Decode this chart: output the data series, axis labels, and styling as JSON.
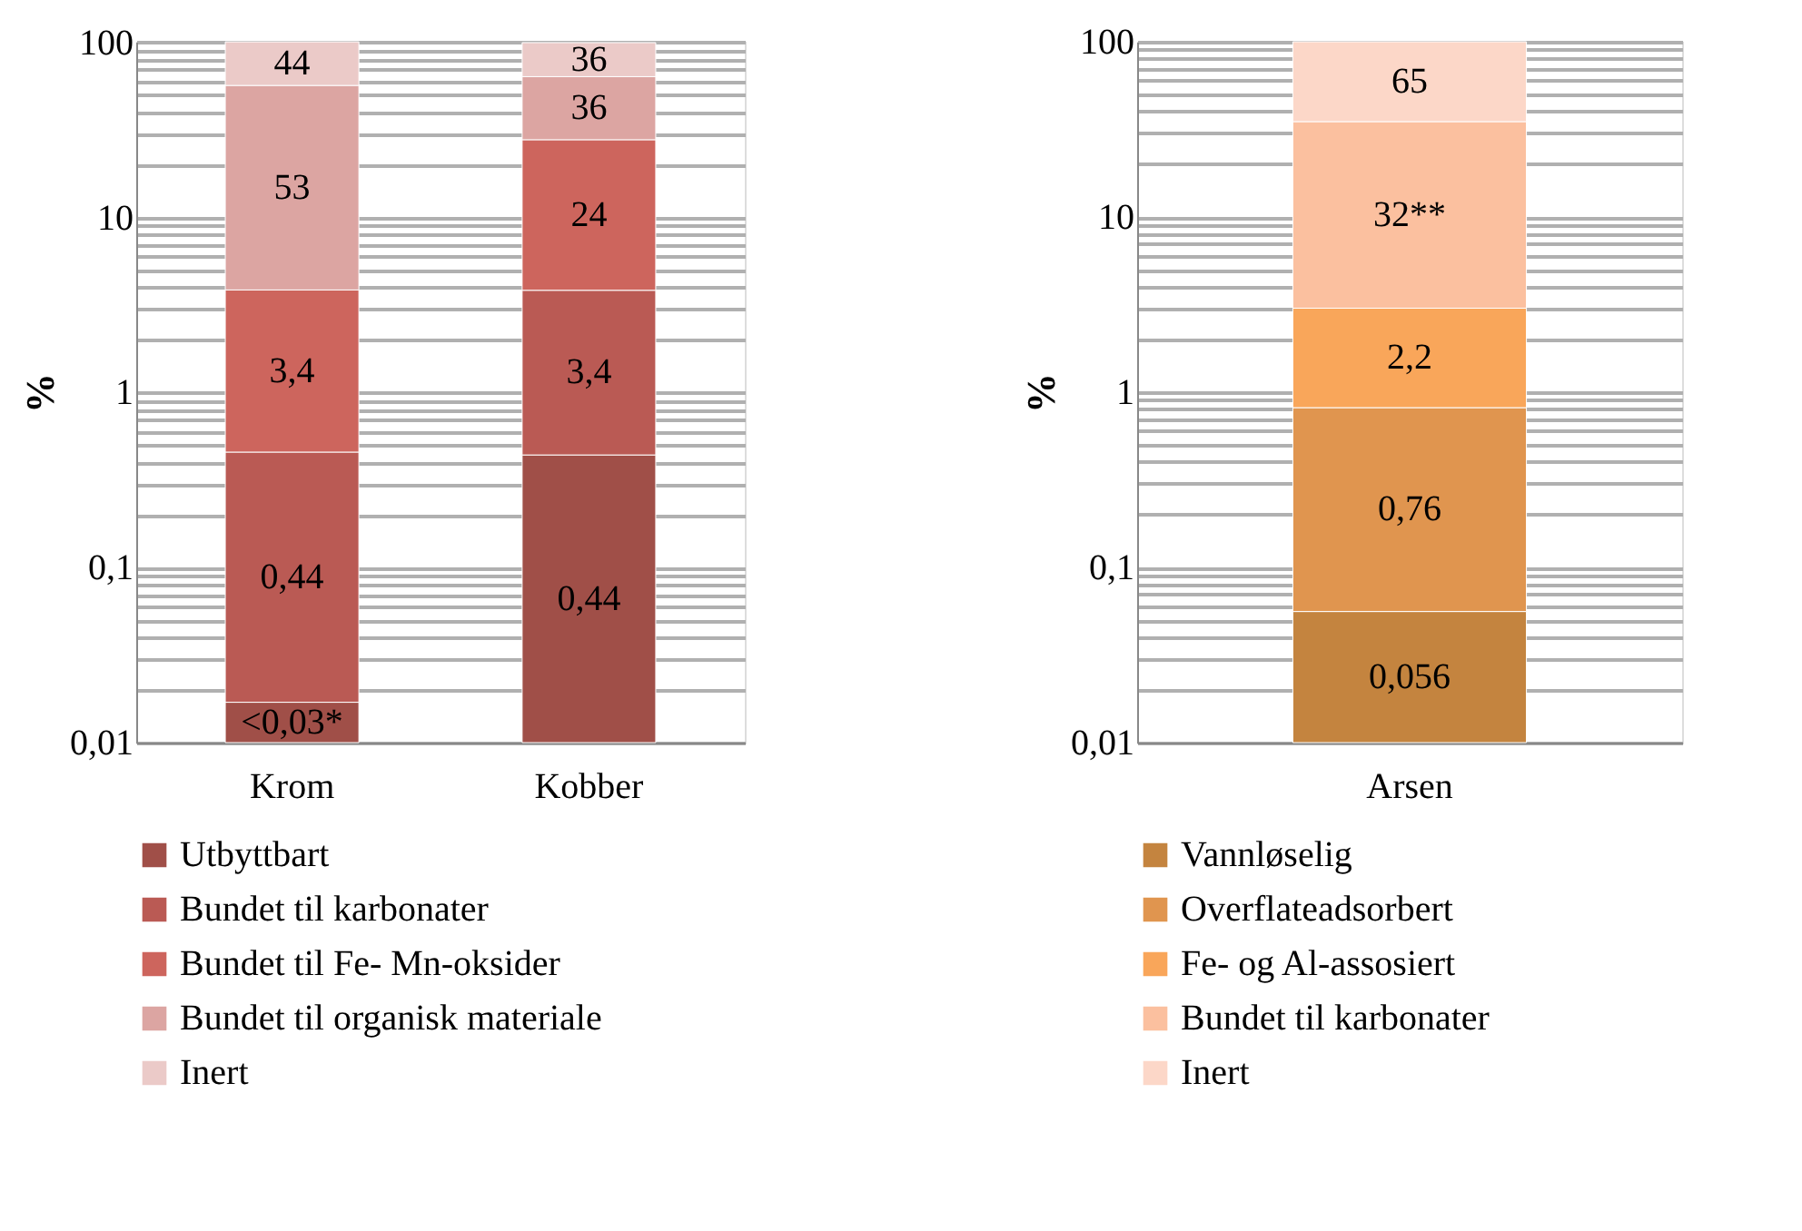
{
  "chart_data": [
    {
      "type": "bar",
      "stacked": true,
      "log": true,
      "ylabel": "%",
      "categories": [
        "Krom",
        "Kobber"
      ],
      "series": [
        {
          "name": "Utbyttbart",
          "color": "#a04f48",
          "values": [
            0.017,
            0.44
          ],
          "value_labels": [
            "<0,03*",
            "0,44"
          ]
        },
        {
          "name": "Bundet til karbonater",
          "color": "#ba5a54",
          "values": [
            0.44,
            3.4
          ],
          "value_labels": [
            "0,44",
            "3,4"
          ]
        },
        {
          "name": "Bundet til Fe- Mn-oksider",
          "color": "#cd655d",
          "values": [
            3.4,
            24
          ],
          "value_labels": [
            "3,4",
            "24"
          ]
        },
        {
          "name": "Bundet til organisk materiale",
          "color": "#dca5a2",
          "values": [
            53,
            36
          ],
          "value_labels": [
            "53",
            "36"
          ]
        },
        {
          "name": "Inert",
          "color": "#ebcac8",
          "values": [
            44,
            36
          ],
          "value_labels": [
            "44",
            "36"
          ]
        }
      ],
      "ylim": [
        0.01,
        101
      ],
      "yticks": [
        {
          "value": 0.01,
          "label": "0,01"
        },
        {
          "value": 0.02,
          "label": null
        },
        {
          "value": 0.03,
          "label": null
        },
        {
          "value": 0.04,
          "label": null
        },
        {
          "value": 0.05,
          "label": null
        },
        {
          "value": 0.06,
          "label": null
        },
        {
          "value": 0.07,
          "label": null
        },
        {
          "value": 0.08,
          "label": null
        },
        {
          "value": 0.09,
          "label": null
        },
        {
          "value": 0.1,
          "label": "0,1"
        },
        {
          "value": 0.2,
          "label": null
        },
        {
          "value": 0.3,
          "label": null
        },
        {
          "value": 0.4,
          "label": null
        },
        {
          "value": 0.5,
          "label": null
        },
        {
          "value": 0.6,
          "label": null
        },
        {
          "value": 0.7,
          "label": null
        },
        {
          "value": 0.8,
          "label": null
        },
        {
          "value": 0.9,
          "label": null
        },
        1,
        {
          "value": 2,
          "label": null
        },
        {
          "value": 3,
          "label": null
        },
        {
          "value": 4,
          "label": null
        },
        {
          "value": 5,
          "label": null
        },
        {
          "value": 6,
          "label": null
        },
        {
          "value": 7,
          "label": null
        },
        {
          "value": 8,
          "label": null
        },
        {
          "value": 9,
          "label": null
        },
        10,
        {
          "value": 20,
          "label": null
        },
        {
          "value": 30,
          "label": null
        },
        {
          "value": 40,
          "label": null
        },
        {
          "value": 50,
          "label": null
        },
        {
          "value": 60,
          "label": null
        },
        {
          "value": 70,
          "label": null
        },
        {
          "value": 80,
          "label": null
        },
        {
          "value": 90,
          "label": null
        },
        100
      ],
      "grid": "y",
      "legend": "bottom"
    },
    {
      "type": "bar",
      "stacked": true,
      "log": true,
      "ylabel": "%",
      "categories": [
        "Arsen"
      ],
      "series": [
        {
          "name": "Vannløselig",
          "color": "#c4843f",
          "values": [
            0.056
          ],
          "value_labels": [
            "0,056"
          ]
        },
        {
          "name": "Overflateadsorbert",
          "color": "#e0954f",
          "values": [
            0.76
          ],
          "value_labels": [
            "0,76"
          ]
        },
        {
          "name": "Fe- og Al-assosiert",
          "color": "#f9a65a",
          "values": [
            2.2
          ],
          "value_labels": [
            "2,2"
          ]
        },
        {
          "name": "Bundet til karbonater",
          "color": "#fbc09f",
          "values": [
            32
          ],
          "value_labels": [
            "32**"
          ]
        },
        {
          "name": "Inert",
          "color": "#fcd7c8",
          "values": [
            65
          ],
          "value_labels": [
            "65"
          ]
        }
      ],
      "ylim": [
        0.01,
        100
      ],
      "yticks": [
        {
          "value": 0.01,
          "label": "0,01"
        },
        {
          "value": 0.02,
          "label": null
        },
        {
          "value": 0.03,
          "label": null
        },
        {
          "value": 0.04,
          "label": null
        },
        {
          "value": 0.05,
          "label": null
        },
        {
          "value": 0.06,
          "label": null
        },
        {
          "value": 0.07,
          "label": null
        },
        {
          "value": 0.08,
          "label": null
        },
        {
          "value": 0.09,
          "label": null
        },
        {
          "value": 0.1,
          "label": "0,1"
        },
        {
          "value": 0.2,
          "label": null
        },
        {
          "value": 0.3,
          "label": null
        },
        {
          "value": 0.4,
          "label": null
        },
        {
          "value": 0.5,
          "label": null
        },
        {
          "value": 0.6,
          "label": null
        },
        {
          "value": 0.7,
          "label": null
        },
        {
          "value": 0.8,
          "label": null
        },
        {
          "value": 0.9,
          "label": null
        },
        1,
        {
          "value": 2,
          "label": null
        },
        {
          "value": 3,
          "label": null
        },
        {
          "value": 4,
          "label": null
        },
        {
          "value": 5,
          "label": null
        },
        {
          "value": 6,
          "label": null
        },
        {
          "value": 7,
          "label": null
        },
        {
          "value": 8,
          "label": null
        },
        {
          "value": 9,
          "label": null
        },
        10,
        {
          "value": 20,
          "label": null
        },
        {
          "value": 30,
          "label": null
        },
        {
          "value": 40,
          "label": null
        },
        {
          "value": 50,
          "label": null
        },
        {
          "value": 60,
          "label": null
        },
        {
          "value": 70,
          "label": null
        },
        {
          "value": 80,
          "label": null
        },
        {
          "value": 90,
          "label": null
        },
        100
      ],
      "grid": "y",
      "legend": "bottom"
    }
  ]
}
